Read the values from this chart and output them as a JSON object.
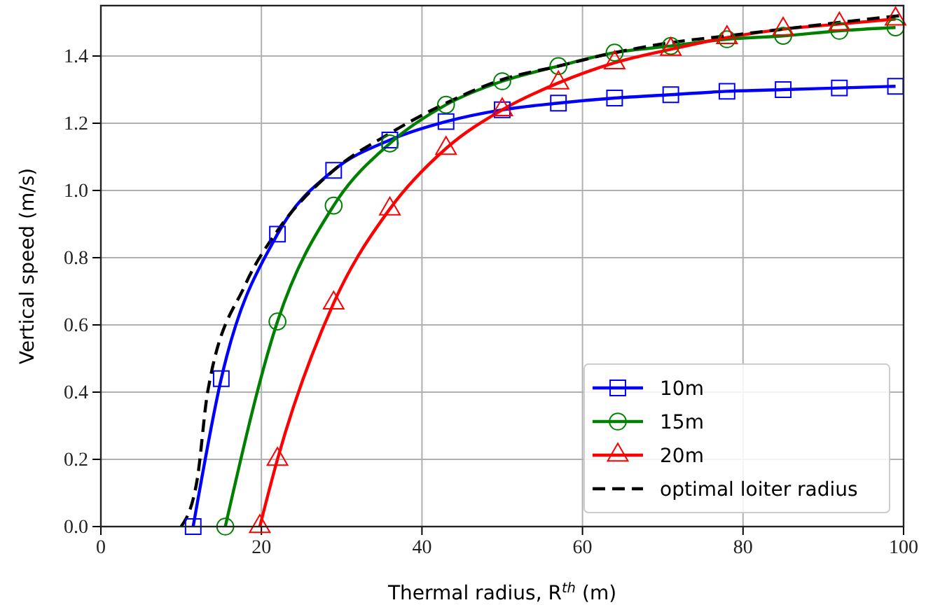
{
  "chart_data": {
    "type": "line",
    "xlabel": "Thermal radius, R$^{th}$ (m)",
    "ylabel": "Vertical speed (m/s)",
    "xlim": [
      0,
      100
    ],
    "ylim": [
      0,
      1.55
    ],
    "xticks": [
      0,
      20,
      40,
      60,
      80,
      100
    ],
    "yticks": [
      {
        "value": 0,
        "label": "0.0"
      },
      {
        "value": 0.2,
        "label": "0.2"
      },
      {
        "value": 0.4,
        "label": "0.4"
      },
      {
        "value": 0.6,
        "label": "0.6"
      },
      {
        "value": 0.8,
        "label": "0.8"
      },
      {
        "value": 1,
        "label": "1.0"
      },
      {
        "value": 1.2,
        "label": "1.2"
      },
      {
        "value": 1.4,
        "label": "1.4"
      }
    ],
    "grid": true,
    "legend": "bottom right",
    "series": [
      {
        "name": "10m",
        "color": "#0000ff",
        "marker": "square",
        "line_style": "solid",
        "x": [
          11.5,
          15,
          22,
          29,
          36,
          43,
          50,
          57,
          64,
          71,
          78,
          85,
          92,
          99
        ],
        "values": [
          0,
          0.44,
          0.87,
          1.06,
          1.15,
          1.205,
          1.24,
          1.26,
          1.275,
          1.285,
          1.295,
          1.3,
          1.305,
          1.31
        ]
      },
      {
        "name": "15m",
        "color": "#008000",
        "marker": "circle",
        "line_style": "solid",
        "x": [
          15.5,
          22,
          29,
          36,
          43,
          50,
          57,
          64,
          71,
          78,
          85,
          92,
          99
        ],
        "values": [
          0,
          0.61,
          0.955,
          1.14,
          1.255,
          1.325,
          1.37,
          1.41,
          1.43,
          1.45,
          1.46,
          1.475,
          1.485
        ]
      },
      {
        "name": "20m",
        "color": "#ff0000",
        "marker": "triangle",
        "line_style": "solid",
        "x": [
          19.8,
          22,
          29,
          36,
          43,
          50,
          57,
          64,
          71,
          78,
          85,
          92,
          99
        ],
        "values": [
          0,
          0.2,
          0.665,
          0.945,
          1.125,
          1.24,
          1.32,
          1.38,
          1.42,
          1.455,
          1.48,
          1.495,
          1.51
        ]
      },
      {
        "name": "optimal loiter radius",
        "color": "#000000",
        "marker": "none",
        "line_style": "dashed",
        "x": [
          10,
          12,
          13.3,
          18,
          22,
          29,
          36,
          43,
          50,
          57,
          64,
          71,
          78,
          85,
          92,
          99.5
        ],
        "values": [
          0,
          0.14,
          0.4,
          0.72,
          0.88,
          1.06,
          1.17,
          1.26,
          1.33,
          1.37,
          1.41,
          1.44,
          1.46,
          1.48,
          1.5,
          1.52
        ]
      }
    ]
  }
}
